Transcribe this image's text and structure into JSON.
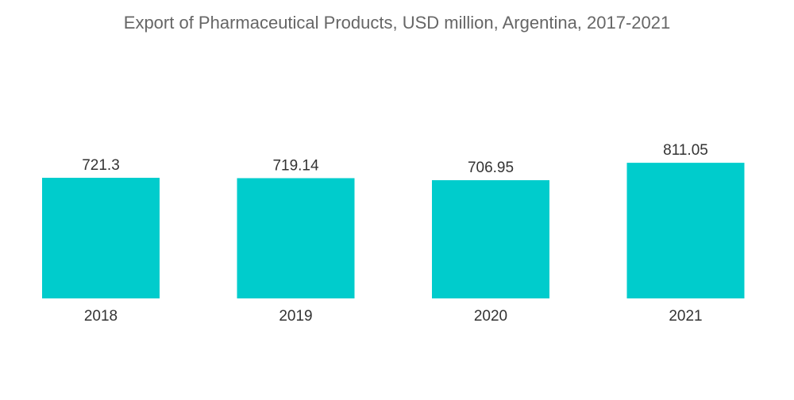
{
  "chart_data": {
    "type": "bar",
    "title": "Export of Pharmaceutical Products, USD million, Argentina, 2017-2021",
    "categories": [
      "2018",
      "2019",
      "2020",
      "2021"
    ],
    "values": [
      721.3,
      719.14,
      706.95,
      811.05
    ],
    "value_labels": [
      "721.3",
      "719.14",
      "706.95",
      "811.05"
    ],
    "xlabel": "",
    "ylabel": "",
    "ylim": [
      0,
      900
    ],
    "grid": false,
    "legend": "none",
    "bar_color": "#00CCCC"
  }
}
